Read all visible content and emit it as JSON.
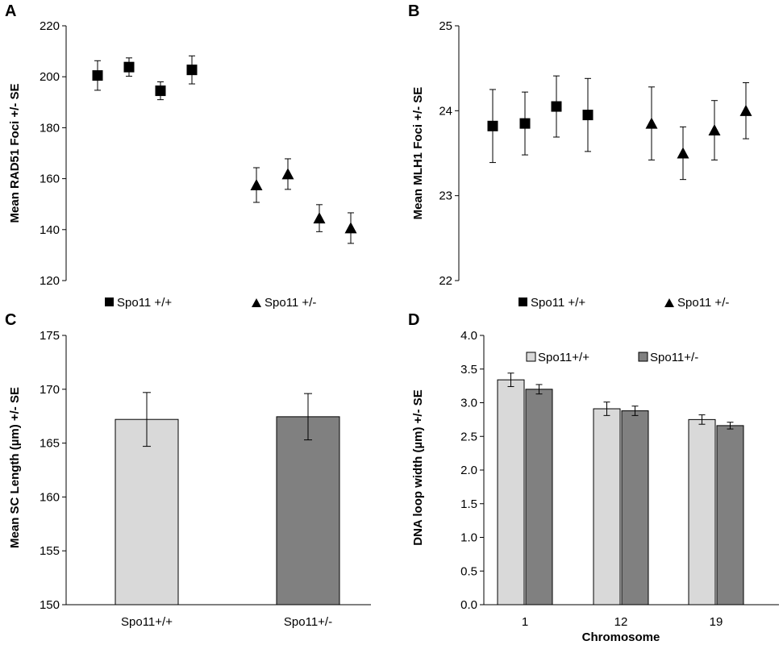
{
  "chart_data": [
    {
      "panel": "A",
      "type": "scatter",
      "ylabel": "Mean RAD51 Foci +/- SE",
      "ylim": [
        120,
        220
      ],
      "yticks": [
        120,
        140,
        160,
        180,
        200,
        220
      ],
      "grid": false,
      "legend_placement": "bottom",
      "error_bars": true,
      "series": [
        {
          "name": "Spo11 +/+",
          "marker": "square",
          "values": [
            200.5,
            203.8,
            194.5,
            202.7
          ],
          "err": [
            5.8,
            3.6,
            3.5,
            5.5
          ]
        },
        {
          "name": "Spo11 +/-",
          "marker": "triangle",
          "values": [
            157.5,
            161.8,
            144.5,
            140.6
          ],
          "err": [
            6.8,
            6.0,
            5.3,
            6.0
          ]
        }
      ]
    },
    {
      "panel": "B",
      "type": "scatter",
      "ylabel": "Mean  MLH1 Foci +/- SE",
      "ylim": [
        22,
        25
      ],
      "yticks": [
        22,
        23,
        24,
        25
      ],
      "grid": false,
      "legend_placement": "bottom",
      "error_bars": true,
      "series": [
        {
          "name": "Spo11 +/+",
          "marker": "square",
          "values": [
            23.82,
            23.85,
            24.05,
            23.95
          ],
          "err": [
            0.43,
            0.37,
            0.36,
            0.43
          ]
        },
        {
          "name": "Spo11 +/-",
          "marker": "triangle",
          "values": [
            23.85,
            23.5,
            23.77,
            24.0
          ],
          "err": [
            0.43,
            0.31,
            0.35,
            0.33
          ]
        }
      ]
    },
    {
      "panel": "C",
      "type": "bar",
      "ylabel": "Mean SC Length (µm)  +/- SE",
      "ylim": [
        150,
        175
      ],
      "yticks": [
        150,
        155,
        160,
        165,
        170,
        175
      ],
      "categories": [
        "Spo11+/+",
        "Spo11+/-"
      ],
      "values": [
        167.2,
        167.45
      ],
      "err": [
        2.5,
        2.15
      ],
      "colors": [
        "#d9d9d9",
        "#808080"
      ],
      "grid": false
    },
    {
      "panel": "D",
      "type": "bar",
      "ylabel": "DNA loop width (µm)  +/- SE",
      "xlabel": "Chromosome",
      "ylim": [
        0,
        4
      ],
      "yticks": [
        "0.0",
        "0.5",
        "1.0",
        "1.5",
        "2.0",
        "2.5",
        "3.0",
        "3.5",
        "4.0"
      ],
      "categories": [
        "1",
        "12",
        "19"
      ],
      "grid": false,
      "legend_placement": "top",
      "series": [
        {
          "name": "Spo11+/+",
          "color": "#d9d9d9",
          "values": [
            3.34,
            2.91,
            2.75
          ],
          "err": [
            0.1,
            0.1,
            0.07
          ]
        },
        {
          "name": "Spo11+/-",
          "color": "#808080",
          "values": [
            3.2,
            2.88,
            2.66
          ],
          "err": [
            0.07,
            0.07,
            0.05
          ]
        }
      ]
    }
  ]
}
